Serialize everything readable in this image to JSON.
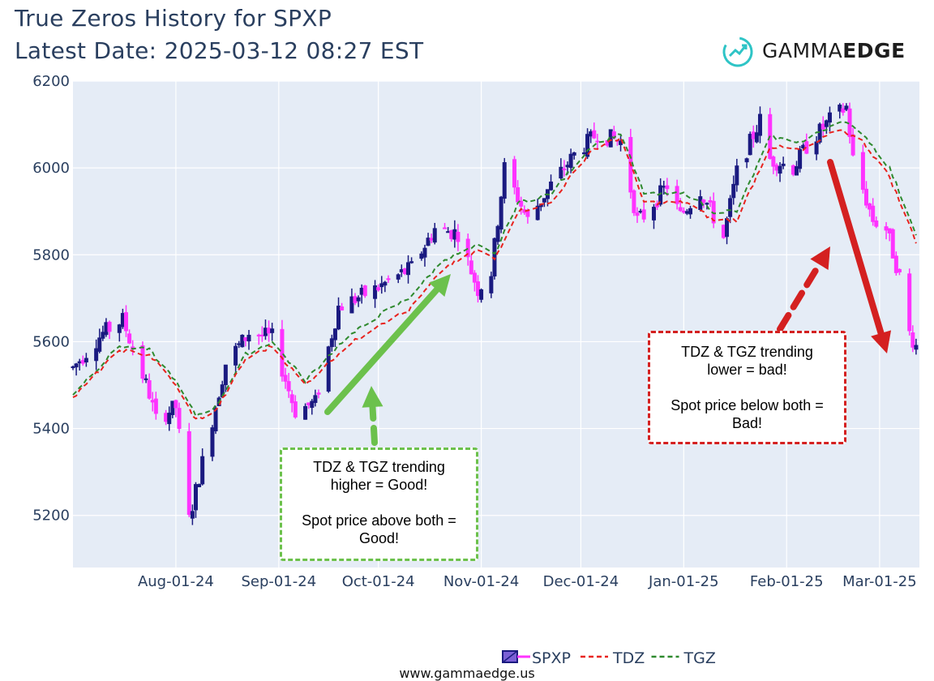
{
  "header": {
    "title": "True Zeros History for SPXP",
    "subtitle": "Latest Date: 2025-03-12 08:27 EST"
  },
  "logo": {
    "text_light": "GAMMA",
    "text_bold": "EDGE",
    "icon": "gauge-arrow-icon"
  },
  "annotations": {
    "good": {
      "line1": "TDZ & TGZ trending",
      "line2": "higher = Good!",
      "line3": "Spot price above both =",
      "line4": "Good!",
      "color": "#6cc14c"
    },
    "bad": {
      "line1": "TDZ & TGZ trending",
      "line2": "lower = bad!",
      "line3": "Spot price below both =",
      "line4": "Bad!",
      "color": "#d42020"
    }
  },
  "footer": {
    "url": "www.gammaedge.us"
  },
  "colors": {
    "plot_bg": "#e5ecf6",
    "up": "#1a1a80",
    "down": "#ff33ff",
    "tdz": "#e8231f",
    "tgz": "#2f8a2f"
  },
  "chart_data": {
    "type": "candlestick",
    "title": "True Zeros History for SPXP",
    "xlabel": "",
    "ylabel": "",
    "ylim": [
      5080,
      6200
    ],
    "yticks": [
      5200,
      5400,
      5600,
      5800,
      6000,
      6200
    ],
    "xrange": [
      "2024-07-01",
      "2025-03-13"
    ],
    "xticks": [
      {
        "date": "2024-08-01",
        "label": "Aug-01-24"
      },
      {
        "date": "2024-09-01",
        "label": "Sep-01-24"
      },
      {
        "date": "2024-10-01",
        "label": "Oct-01-24"
      },
      {
        "date": "2024-11-01",
        "label": "Nov-01-24"
      },
      {
        "date": "2024-12-01",
        "label": "Dec-01-24"
      },
      {
        "date": "2025-01-01",
        "label": "Jan-01-25"
      },
      {
        "date": "2025-02-01",
        "label": "Feb-01-25"
      },
      {
        "date": "2025-03-01",
        "label": "Mar-01-25"
      }
    ],
    "legend": [
      {
        "name": "SPXP",
        "style": "candle"
      },
      {
        "name": "TDZ",
        "style": "dash",
        "color": "#e8231f"
      },
      {
        "name": "TGZ",
        "style": "dash",
        "color": "#2f8a2f"
      }
    ],
    "legend_position": "bottom-right",
    "grid": true,
    "anchors": [
      [
        "2024-07-01",
        5540
      ],
      [
        "2024-07-10",
        5620
      ],
      [
        "2024-07-16",
        5650
      ],
      [
        "2024-07-24",
        5480
      ],
      [
        "2024-07-26",
        5420
      ],
      [
        "2024-08-01",
        5450
      ],
      [
        "2024-08-05",
        5190
      ],
      [
        "2024-08-08",
        5290
      ],
      [
        "2024-08-16",
        5550
      ],
      [
        "2024-08-23",
        5620
      ],
      [
        "2024-08-30",
        5610
      ],
      [
        "2024-09-06",
        5440
      ],
      [
        "2024-09-12",
        5460
      ],
      [
        "2024-09-19",
        5680
      ],
      [
        "2024-09-30",
        5720
      ],
      [
        "2024-10-11",
        5770
      ],
      [
        "2024-10-18",
        5860
      ],
      [
        "2024-10-25",
        5850
      ],
      [
        "2024-10-31",
        5720
      ],
      [
        "2024-11-04",
        5760
      ],
      [
        "2024-11-08",
        6000
      ],
      [
        "2024-11-15",
        5880
      ],
      [
        "2024-11-22",
        5960
      ],
      [
        "2024-11-29",
        6030
      ],
      [
        "2024-12-06",
        6080
      ],
      [
        "2024-12-13",
        6060
      ],
      [
        "2024-12-18",
        5880
      ],
      [
        "2024-12-20",
        5890
      ],
      [
        "2024-12-27",
        5960
      ],
      [
        "2024-12-31",
        5890
      ],
      [
        "2025-01-06",
        5950
      ],
      [
        "2025-01-13",
        5840
      ],
      [
        "2025-01-17",
        5990
      ],
      [
        "2025-01-24",
        6110
      ],
      [
        "2025-01-27",
        6020
      ],
      [
        "2025-02-03",
        6000
      ],
      [
        "2025-02-07",
        6050
      ],
      [
        "2025-02-14",
        6110
      ],
      [
        "2025-02-19",
        6140
      ],
      [
        "2025-02-21",
        6020
      ],
      [
        "2025-02-27",
        5880
      ],
      [
        "2025-03-03",
        5860
      ],
      [
        "2025-03-07",
        5750
      ],
      [
        "2025-03-10",
        5620
      ],
      [
        "2025-03-12",
        5590
      ]
    ],
    "tdz": [
      [
        "2024-07-01",
        5470
      ],
      [
        "2024-07-15",
        5580
      ],
      [
        "2024-07-24",
        5570
      ],
      [
        "2024-07-31",
        5510
      ],
      [
        "2024-08-07",
        5420
      ],
      [
        "2024-08-13",
        5440
      ],
      [
        "2024-08-22",
        5560
      ],
      [
        "2024-08-30",
        5590
      ],
      [
        "2024-09-09",
        5500
      ],
      [
        "2024-09-20",
        5580
      ],
      [
        "2024-10-01",
        5640
      ],
      [
        "2024-10-10",
        5670
      ],
      [
        "2024-10-21",
        5770
      ],
      [
        "2024-10-31",
        5810
      ],
      [
        "2024-11-05",
        5790
      ],
      [
        "2024-11-12",
        5900
      ],
      [
        "2024-11-22",
        5920
      ],
      [
        "2024-12-04",
        6040
      ],
      [
        "2024-12-13",
        6070
      ],
      [
        "2024-12-20",
        5920
      ],
      [
        "2025-01-02",
        5920
      ],
      [
        "2025-01-10",
        5880
      ],
      [
        "2025-01-17",
        5880
      ],
      [
        "2025-01-27",
        6050
      ],
      [
        "2025-02-06",
        6040
      ],
      [
        "2025-02-17",
        6090
      ],
      [
        "2025-02-24",
        6060
      ],
      [
        "2025-03-04",
        5980
      ],
      [
        "2025-03-12",
        5830
      ]
    ],
    "tgz": [
      [
        "2024-07-01",
        5480
      ],
      [
        "2024-07-15",
        5590
      ],
      [
        "2024-07-24",
        5580
      ],
      [
        "2024-07-31",
        5520
      ],
      [
        "2024-08-07",
        5430
      ],
      [
        "2024-08-13",
        5450
      ],
      [
        "2024-08-22",
        5570
      ],
      [
        "2024-08-30",
        5600
      ],
      [
        "2024-09-09",
        5510
      ],
      [
        "2024-09-20",
        5600
      ],
      [
        "2024-10-01",
        5660
      ],
      [
        "2024-10-10",
        5700
      ],
      [
        "2024-10-21",
        5790
      ],
      [
        "2024-10-31",
        5820
      ],
      [
        "2024-11-05",
        5800
      ],
      [
        "2024-11-12",
        5920
      ],
      [
        "2024-11-22",
        5940
      ],
      [
        "2024-12-04",
        6050
      ],
      [
        "2024-12-13",
        6080
      ],
      [
        "2024-12-20",
        5940
      ],
      [
        "2025-01-02",
        5940
      ],
      [
        "2025-01-10",
        5900
      ],
      [
        "2025-01-17",
        5900
      ],
      [
        "2025-01-27",
        6070
      ],
      [
        "2025-02-06",
        6060
      ],
      [
        "2025-02-17",
        6110
      ],
      [
        "2025-02-24",
        6080
      ],
      [
        "2025-03-04",
        6000
      ],
      [
        "2025-03-12",
        5850
      ]
    ]
  }
}
